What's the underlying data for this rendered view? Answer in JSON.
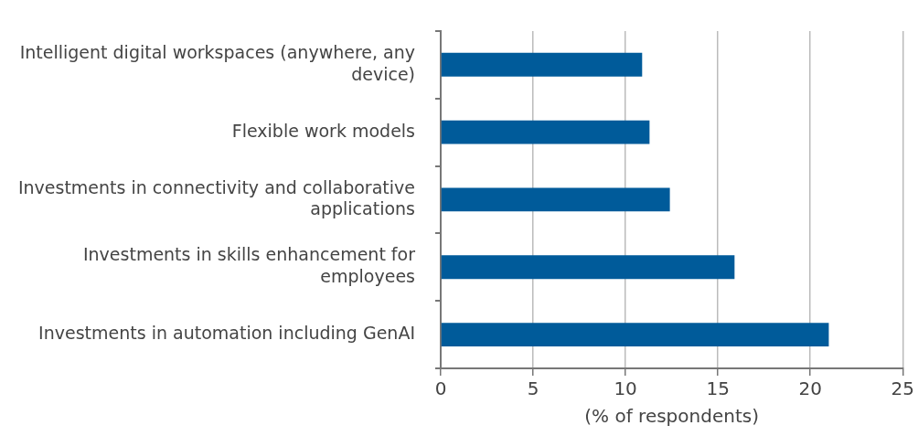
{
  "chart_data": {
    "type": "bar",
    "orientation": "horizontal",
    "xlabel": "(% of respondents)",
    "categories": [
      "Intelligent digital workspaces (anywhere, any device)",
      "Flexible work models",
      "Investments in connectivity and collaborative applications",
      "Investments in skills enhancement for employees",
      "Investments in automation including GenAI"
    ],
    "values": [
      10.9,
      11.3,
      12.4,
      15.9,
      21.0
    ],
    "color": "#005b9a",
    "xlim": [
      0,
      25
    ],
    "xticks": [
      0,
      5,
      10,
      15,
      20,
      25
    ],
    "grid": "x",
    "legend": false
  }
}
